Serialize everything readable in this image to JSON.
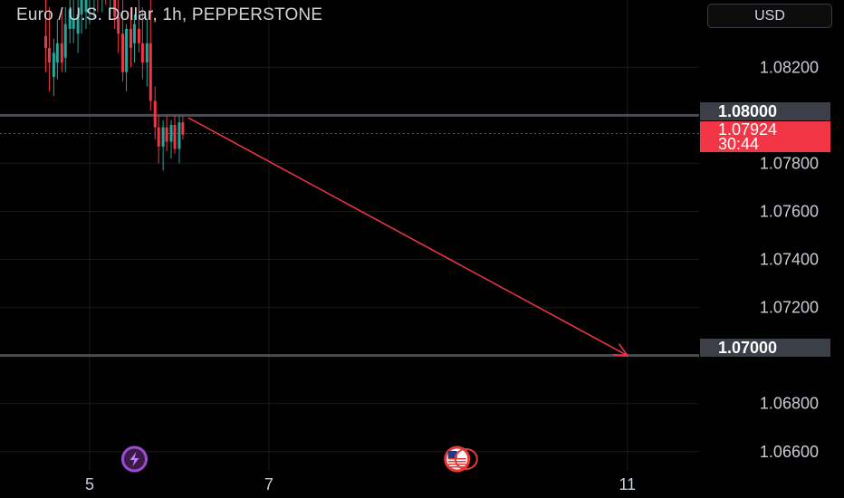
{
  "header": {
    "title": "Euro / U.S. Dollar, 1h, PEPPERSTONE",
    "currency_button": "USD"
  },
  "price_tags": {
    "level_upper": "1.08000",
    "level_lower": "1.07000",
    "current_price": "1.07924",
    "countdown": "30:44"
  },
  "colors": {
    "up": "#26a69a",
    "down": "#f23645",
    "arrow": "#f23645",
    "level_line": "#4a4d56",
    "grid": "#1a1a1a",
    "axis_text": "#c8ccd4"
  },
  "icons": {
    "event_1": "lightning-bolt-icon",
    "event_2": "us-flag-icon"
  },
  "chart_data": {
    "type": "candlestick",
    "title": "Euro / U.S. Dollar, 1h, PEPPERSTONE",
    "ylim": [
      1.0652,
      1.0848
    ],
    "x_range": [
      4.0,
      11.8
    ],
    "y_ticks": [
      "1.08200",
      "1.07800",
      "1.07600",
      "1.07400",
      "1.07200",
      "1.06800",
      "1.06600"
    ],
    "y_tick_values": [
      1.082,
      1.078,
      1.076,
      1.074,
      1.072,
      1.068,
      1.066
    ],
    "x_ticks": [
      "5",
      "7",
      "11"
    ],
    "x_tick_values": [
      5,
      7,
      11
    ],
    "grid": true,
    "candles": [
      {
        "x": 4.51,
        "o": 1.0833,
        "h": 1.086,
        "l": 1.0818,
        "c": 1.0828
      },
      {
        "x": 4.55,
        "o": 1.0828,
        "h": 1.0845,
        "l": 1.081,
        "c": 1.0822
      },
      {
        "x": 4.6,
        "o": 1.0816,
        "h": 1.0832,
        "l": 1.0808,
        "c": 1.0826
      },
      {
        "x": 4.64,
        "o": 1.0822,
        "h": 1.084,
        "l": 1.0815,
        "c": 1.083
      },
      {
        "x": 4.69,
        "o": 1.083,
        "h": 1.0845,
        "l": 1.0818,
        "c": 1.0822
      },
      {
        "x": 4.73,
        "o": 1.0824,
        "h": 1.0845,
        "l": 1.0818,
        "c": 1.0838
      },
      {
        "x": 4.78,
        "o": 1.0836,
        "h": 1.085,
        "l": 1.083,
        "c": 1.0844
      },
      {
        "x": 4.82,
        "o": 1.0836,
        "h": 1.085,
        "l": 1.083,
        "c": 1.084
      },
      {
        "x": 4.87,
        "o": 1.0834,
        "h": 1.085,
        "l": 1.0826,
        "c": 1.0842
      },
      {
        "x": 4.91,
        "o": 1.0842,
        "h": 1.0854,
        "l": 1.0834,
        "c": 1.0849
      },
      {
        "x": 4.96,
        "o": 1.0843,
        "h": 1.0856,
        "l": 1.0836,
        "c": 1.0853
      },
      {
        "x": 5.0,
        "o": 1.085,
        "h": 1.0858,
        "l": 1.0838,
        "c": 1.0854
      },
      {
        "x": 5.05,
        "o": 1.0852,
        "h": 1.086,
        "l": 1.084,
        "c": 1.0856
      },
      {
        "x": 5.09,
        "o": 1.0855,
        "h": 1.086,
        "l": 1.0843,
        "c": 1.085
      },
      {
        "x": 5.14,
        "o": 1.0852,
        "h": 1.086,
        "l": 1.0843,
        "c": 1.0857
      },
      {
        "x": 5.18,
        "o": 1.0856,
        "h": 1.086,
        "l": 1.0846,
        "c": 1.085
      },
      {
        "x": 5.23,
        "o": 1.0848,
        "h": 1.086,
        "l": 1.0842,
        "c": 1.0856
      },
      {
        "x": 5.28,
        "o": 1.0854,
        "h": 1.086,
        "l": 1.0836,
        "c": 1.0841
      },
      {
        "x": 5.32,
        "o": 1.0841,
        "h": 1.086,
        "l": 1.0826,
        "c": 1.0834
      },
      {
        "x": 5.37,
        "o": 1.0834,
        "h": 1.085,
        "l": 1.0814,
        "c": 1.0818
      },
      {
        "x": 5.41,
        "o": 1.0818,
        "h": 1.0838,
        "l": 1.081,
        "c": 1.0836
      },
      {
        "x": 5.46,
        "o": 1.0836,
        "h": 1.0845,
        "l": 1.082,
        "c": 1.0828
      },
      {
        "x": 5.5,
        "o": 1.083,
        "h": 1.0842,
        "l": 1.0822,
        "c": 1.0838
      },
      {
        "x": 5.55,
        "o": 1.0836,
        "h": 1.085,
        "l": 1.0826,
        "c": 1.083
      },
      {
        "x": 5.59,
        "o": 1.083,
        "h": 1.0845,
        "l": 1.0815,
        "c": 1.0822
      },
      {
        "x": 5.64,
        "o": 1.0822,
        "h": 1.084,
        "l": 1.0812,
        "c": 1.083
      },
      {
        "x": 5.68,
        "o": 1.083,
        "h": 1.0848,
        "l": 1.0802,
        "c": 1.0806
      },
      {
        "x": 5.73,
        "o": 1.0806,
        "h": 1.0812,
        "l": 1.079,
        "c": 1.0795
      },
      {
        "x": 5.77,
        "o": 1.0795,
        "h": 1.08,
        "l": 1.078,
        "c": 1.0787
      },
      {
        "x": 5.82,
        "o": 1.0787,
        "h": 1.0798,
        "l": 1.0777,
        "c": 1.0795
      },
      {
        "x": 5.86,
        "o": 1.0795,
        "h": 1.08,
        "l": 1.0785,
        "c": 1.0789
      },
      {
        "x": 5.91,
        "o": 1.0789,
        "h": 1.0798,
        "l": 1.0782,
        "c": 1.0796
      },
      {
        "x": 5.95,
        "o": 1.0796,
        "h": 1.08,
        "l": 1.0784,
        "c": 1.0786
      },
      {
        "x": 6.0,
        "o": 1.0786,
        "h": 1.08,
        "l": 1.078,
        "c": 1.0797
      },
      {
        "x": 6.04,
        "o": 1.0797,
        "h": 1.08,
        "l": 1.079,
        "c": 1.0792
      }
    ],
    "horizontal_levels": [
      1.08,
      1.07
    ],
    "current_price": 1.07924,
    "projection_arrow": {
      "from": {
        "x": 6.1,
        "y": 1.0799
      },
      "to": {
        "x": 11.0,
        "y": 1.07
      }
    },
    "event_markers": [
      {
        "x": 5.5,
        "icon": "lightning-bolt-icon"
      },
      {
        "x": 9.1,
        "icon": "us-flag-icon"
      }
    ]
  }
}
